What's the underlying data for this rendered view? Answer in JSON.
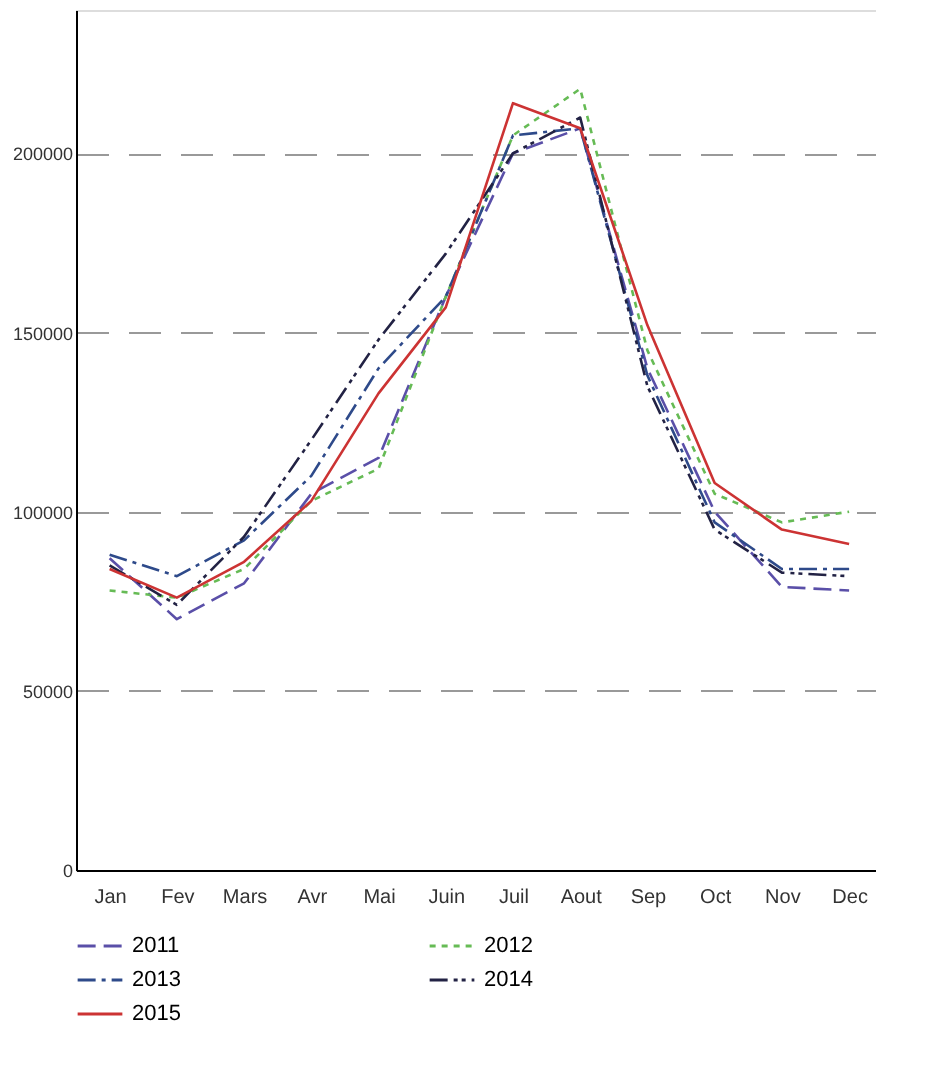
{
  "chart_data": {
    "type": "line",
    "categories": [
      "Jan",
      "Fev",
      "Mars",
      "Avr",
      "Mai",
      "Juin",
      "Juil",
      "Aout",
      "Sep",
      "Oct",
      "Nov",
      "Dec"
    ],
    "series": [
      {
        "name": "2011",
        "color": "#5a4fa8",
        "line_style": "dashed",
        "values": [
          87000,
          70000,
          80000,
          105000,
          115000,
          160000,
          200000,
          207000,
          140000,
          100000,
          79000,
          78000
        ]
      },
      {
        "name": "2012",
        "color": "#66bb55",
        "line_style": "dotted",
        "values": [
          78000,
          76000,
          84000,
          103000,
          112000,
          160000,
          205000,
          218000,
          145000,
          105000,
          97000,
          100000
        ]
      },
      {
        "name": "2013",
        "color": "#2e4a8a",
        "line_style": "dashed",
        "values": [
          88000,
          82000,
          92000,
          110000,
          140000,
          160000,
          205000,
          207000,
          138000,
          97000,
          84000,
          84000
        ]
      },
      {
        "name": "2014",
        "color": "#222244",
        "line_style": "dashed",
        "values": [
          85000,
          74000,
          93000,
          120000,
          148000,
          172000,
          200000,
          210000,
          135000,
          95000,
          83000,
          82000
        ]
      },
      {
        "name": "2015",
        "color": "#cc3333",
        "line_style": "solid",
        "values": [
          84000,
          76000,
          86000,
          103000,
          133000,
          157000,
          214000,
          207000,
          152000,
          108000,
          95000,
          91000
        ]
      }
    ],
    "ylim": [
      0,
      240000
    ],
    "yticks": [
      0,
      50000,
      100000,
      150000,
      200000
    ],
    "grid": "y",
    "legend": "bottom",
    "marker": "none"
  }
}
